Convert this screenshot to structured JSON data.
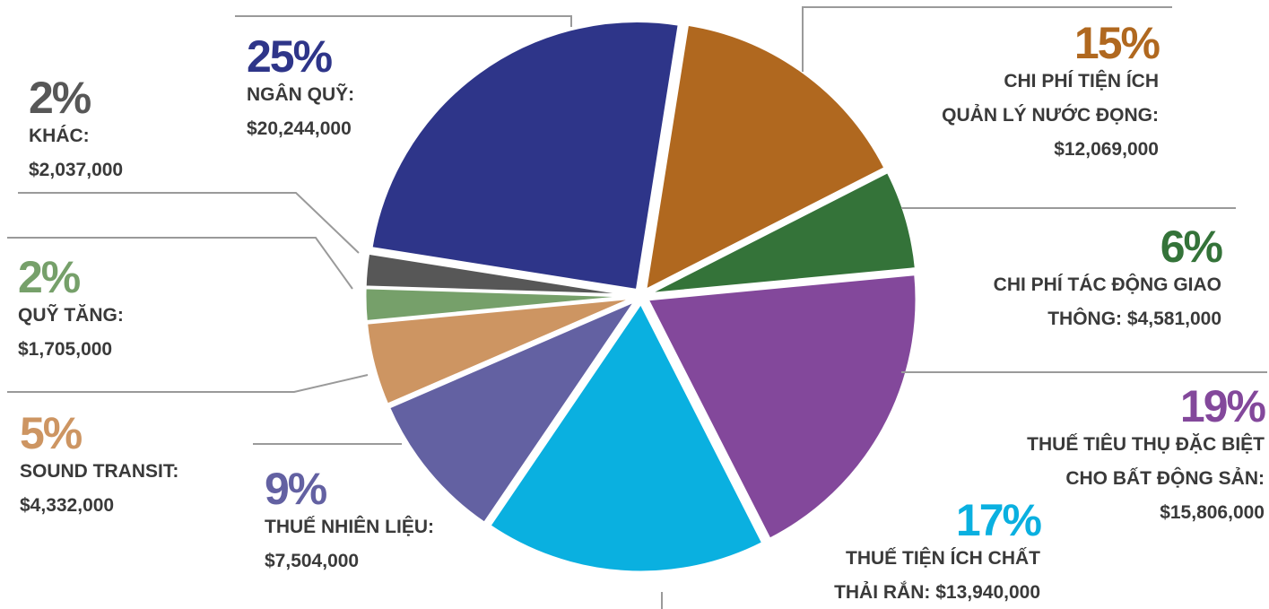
{
  "chart_data": {
    "type": "pie",
    "series": [
      {
        "name_lines": [
          "CHI PHÍ TIỆN ÍCH",
          "QUẢN LÝ NƯỚC ĐỌNG:",
          "$12,069,000"
        ],
        "value": 15,
        "value_label": "15%",
        "color": "#b0681f"
      },
      {
        "name_lines": [
          "CHI PHÍ TÁC ĐỘNG GIAO",
          "THÔNG: $4,581,000"
        ],
        "value": 6,
        "value_label": "6%",
        "color": "#347339"
      },
      {
        "name_lines": [
          "THUẾ TIÊU THỤ ĐẶC BIỆT",
          "CHO BẤT ĐỘNG SẢN:",
          "$15,806,000"
        ],
        "value": 19,
        "value_label": "19%",
        "color": "#83489b"
      },
      {
        "name_lines": [
          "THUẾ TIỆN ÍCH CHẤT",
          "THẢI RẮN: $13,940,000"
        ],
        "value": 17,
        "value_label": "17%",
        "color": "#0ab0e0"
      },
      {
        "name_lines": [
          "THUẾ NHIÊN LIỆU:",
          "$7,504,000"
        ],
        "value": 9,
        "value_label": "9%",
        "color": "#6361a2"
      },
      {
        "name_lines": [
          "SOUND TRANSIT:",
          "$4,332,000"
        ],
        "value": 5,
        "value_label": "5%",
        "color": "#cd9562"
      },
      {
        "name_lines": [
          "QUỸ TĂNG:",
          "$1,705,000"
        ],
        "value": 2,
        "value_label": "2%",
        "color": "#76a06a"
      },
      {
        "name_lines": [
          "KHÁC:",
          "$2,037,000"
        ],
        "value": 2,
        "value_label": "2%",
        "color": "#575757"
      },
      {
        "name_lines": [
          "NGÂN QUỸ:",
          "$20,244,000"
        ],
        "value": 25,
        "value_label": "25%",
        "color": "#2e3589"
      }
    ]
  }
}
